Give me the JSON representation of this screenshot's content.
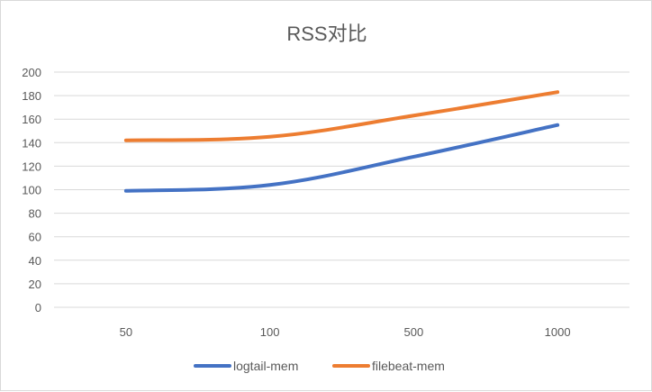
{
  "chart_data": {
    "type": "line",
    "title": "RSS对比",
    "categories": [
      "50",
      "100",
      "500",
      "1000"
    ],
    "ylim": [
      0,
      200
    ],
    "yticks": [
      0,
      20,
      40,
      60,
      80,
      100,
      120,
      140,
      160,
      180,
      200
    ],
    "grid": true,
    "legend_position": "bottom",
    "series": [
      {
        "name": "logtail-mem",
        "values": [
          99,
          104,
          128,
          155
        ],
        "color": "#4472c4"
      },
      {
        "name": "filebeat-mem",
        "values": [
          142,
          145,
          163,
          183
        ],
        "color": "#ed7d31"
      }
    ]
  }
}
